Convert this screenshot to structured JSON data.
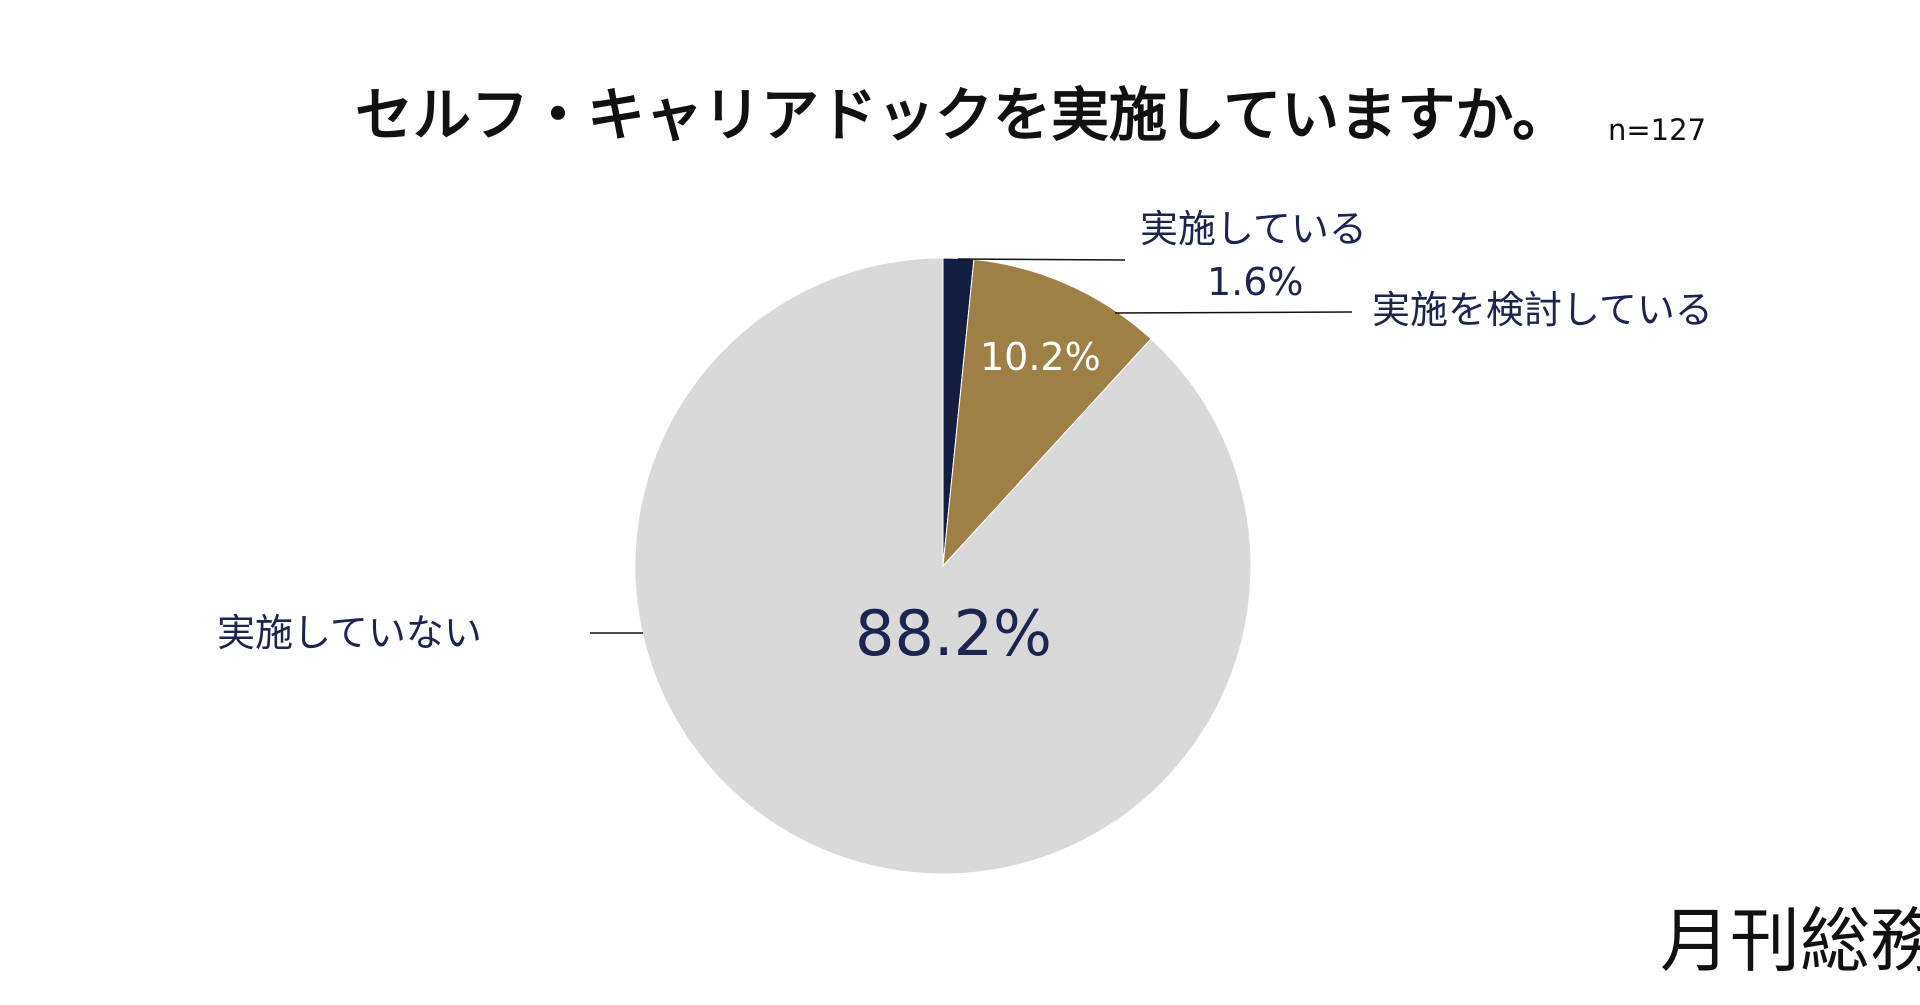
{
  "chart_data": {
    "type": "pie",
    "title": "セルフ・キャリアドックを実施していますか。",
    "sample_size": "n=127",
    "slices": [
      {
        "label": "実施している",
        "value": 1.6,
        "value_text": "1.6%",
        "color": "#141d42"
      },
      {
        "label": "実施を検討している",
        "value": 10.2,
        "value_text": "10.2%",
        "color": "#9e8046"
      },
      {
        "label": "実施していない",
        "value": 88.2,
        "value_text": "88.2%",
        "color": "#d9d9d9"
      }
    ],
    "start_angle": "12 o'clock",
    "direction": "clockwise"
  },
  "brand": {
    "logo_text": "月刊総務"
  }
}
